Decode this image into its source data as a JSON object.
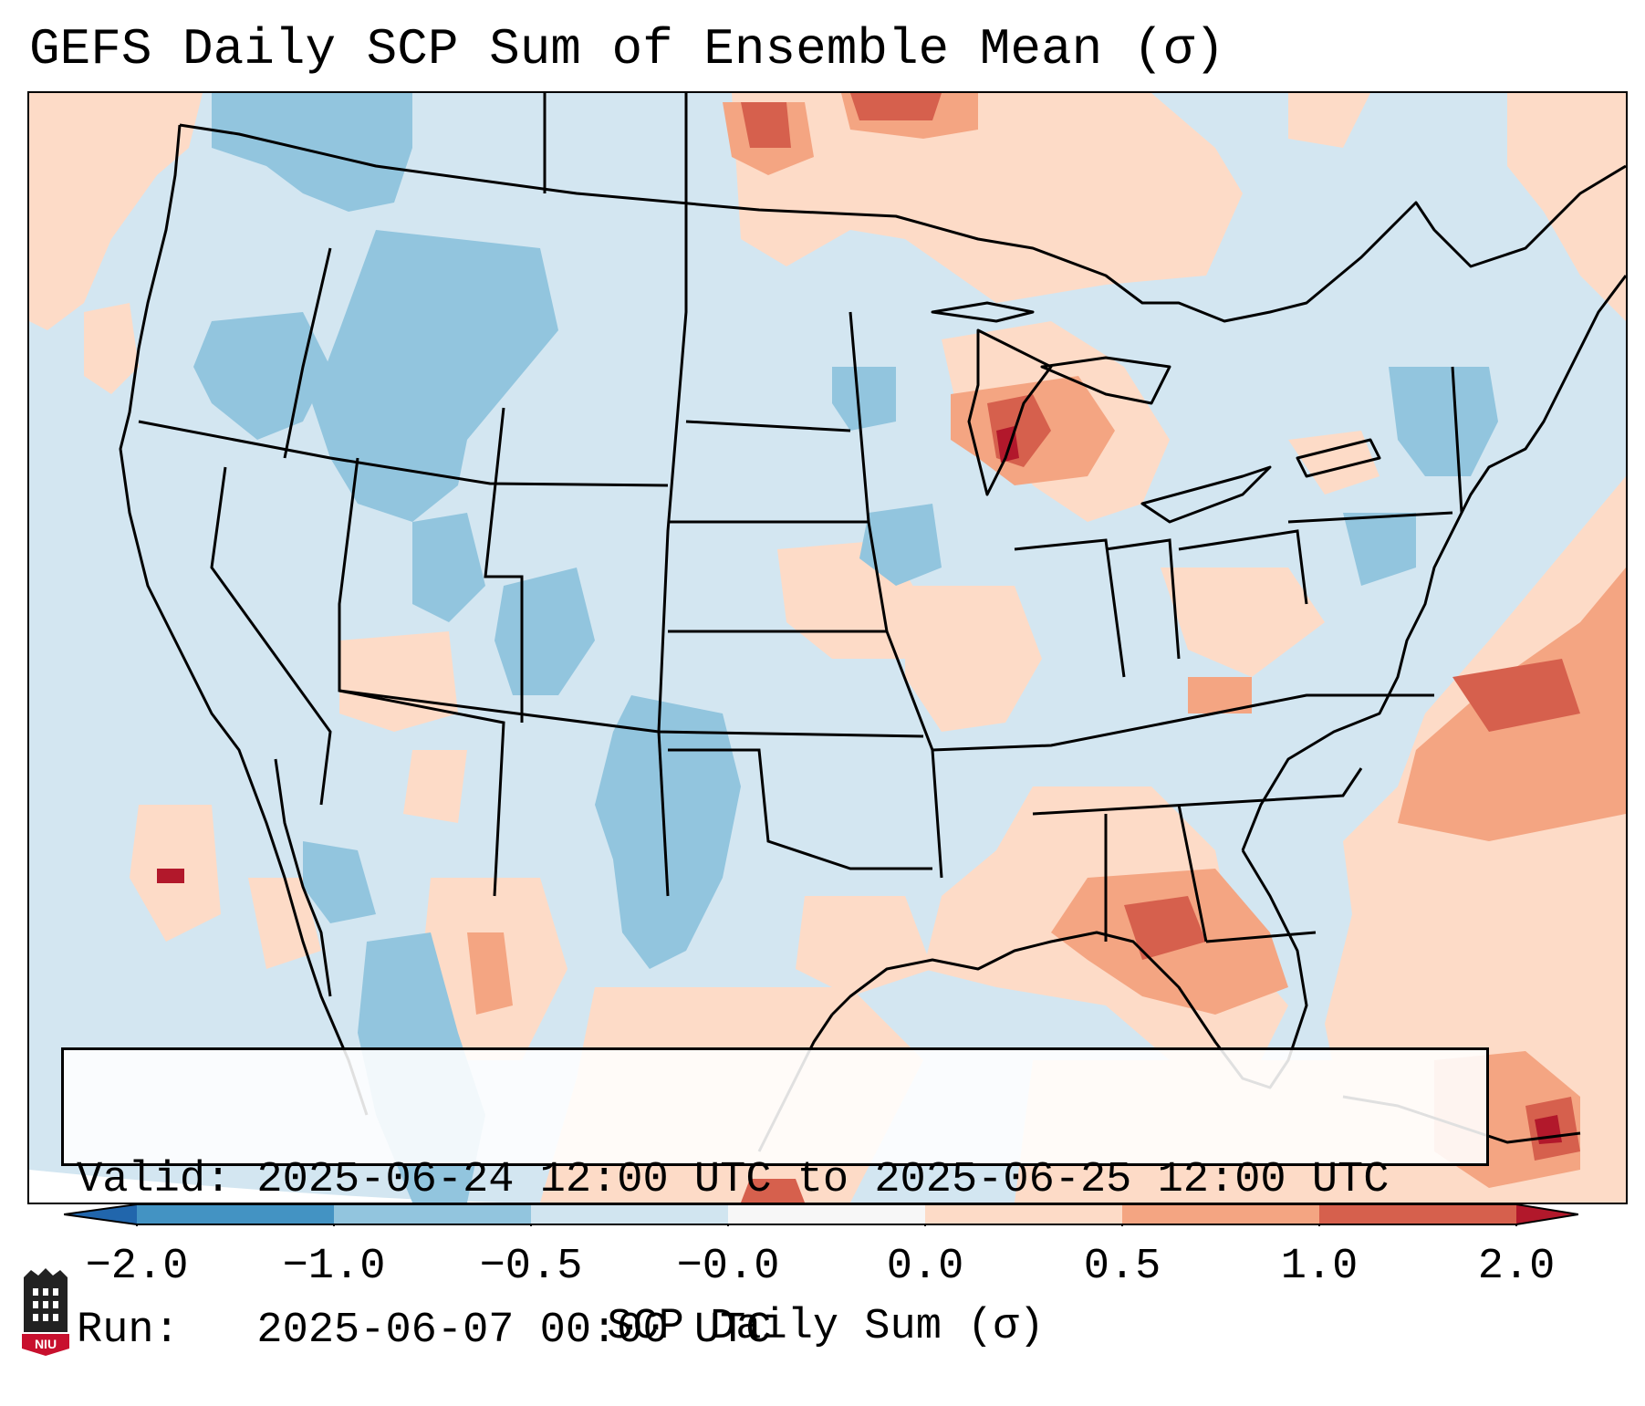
{
  "title": "GEFS Daily SCP Sum of Ensemble Mean (σ)",
  "info": {
    "valid_line": "Valid: 2025-06-24 12:00 UTC to 2025-06-25 12:00 UTC",
    "run_line": "Run:   2025-06-07 00:00 UTC"
  },
  "colorbar": {
    "label": "SCP Daily Sum (σ)",
    "ticks": [
      "−2.0",
      "−1.0",
      "−0.5",
      "−0.0",
      "0.0",
      "0.5",
      "1.0",
      "2.0"
    ],
    "bins": [
      {
        "range": "< -2.0",
        "color": "#2166ac"
      },
      {
        "range": "-2.0 to -1.0",
        "color": "#4393c3"
      },
      {
        "range": "-1.0 to -0.5",
        "color": "#92c5de"
      },
      {
        "range": "-0.5 to -0.0",
        "color": "#d1e5f0"
      },
      {
        "range": "-0.0 to 0.0",
        "color": "#f7f7f7"
      },
      {
        "range": "0.0 to 0.5",
        "color": "#fddbc7"
      },
      {
        "range": "0.5 to 1.0",
        "color": "#f4a582"
      },
      {
        "range": "1.0 to 2.0",
        "color": "#d6604d"
      },
      {
        "range": "> 2.0",
        "color": "#b2182b"
      }
    ]
  },
  "logo": {
    "text": "NIU",
    "name": "niu-logo"
  }
}
